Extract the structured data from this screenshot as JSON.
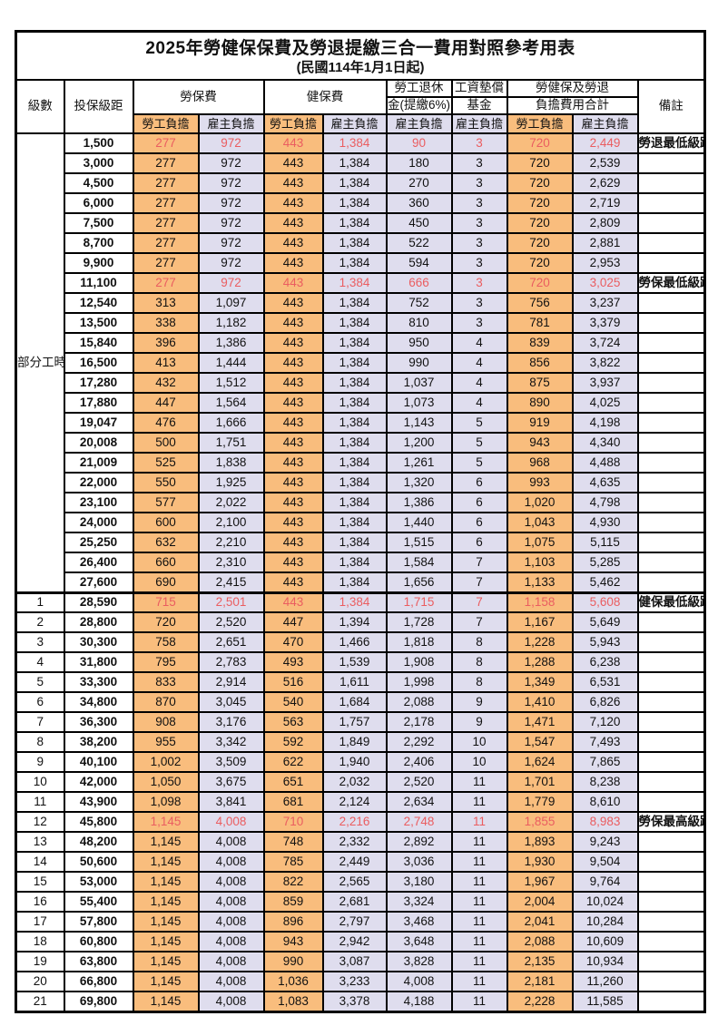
{
  "title": "2025年勞健保保費及勞退提繳三合一費用對照參考用表",
  "subtitle": "(民國114年1月1日起)",
  "colors": {
    "worker_bg": "#f9bd7d",
    "employer_bg": "#dfddee",
    "red_text": "#ea5d60",
    "border": "#000000"
  },
  "columns": {
    "level": "級數",
    "bracket": "投保級距",
    "labor": "勞保費",
    "health": "健保費",
    "pension_line1": "勞工退休",
    "pension_line2": "金(提繳6%)",
    "wage_line1": "工資墊償",
    "wage_line2": "基金",
    "total_line1": "勞健保及勞退",
    "total_line2": "負擔費用合計",
    "remark": "備註",
    "worker_share": "勞工負擔",
    "employer_share": "雇主負擔"
  },
  "group": {
    "label": "部分工時",
    "span": 23
  },
  "rows": [
    {
      "level": "",
      "bracket": "1,500",
      "v": [
        "277",
        "972",
        "443",
        "1,384",
        "90",
        "3",
        "720",
        "2,449"
      ],
      "remark": "勞退最低級距",
      "red": true
    },
    {
      "level": "",
      "bracket": "3,000",
      "v": [
        "277",
        "972",
        "443",
        "1,384",
        "180",
        "3",
        "720",
        "2,539"
      ],
      "remark": "",
      "red": false
    },
    {
      "level": "",
      "bracket": "4,500",
      "v": [
        "277",
        "972",
        "443",
        "1,384",
        "270",
        "3",
        "720",
        "2,629"
      ],
      "remark": "",
      "red": false
    },
    {
      "level": "",
      "bracket": "6,000",
      "v": [
        "277",
        "972",
        "443",
        "1,384",
        "360",
        "3",
        "720",
        "2,719"
      ],
      "remark": "",
      "red": false
    },
    {
      "level": "",
      "bracket": "7,500",
      "v": [
        "277",
        "972",
        "443",
        "1,384",
        "450",
        "3",
        "720",
        "2,809"
      ],
      "remark": "",
      "red": false
    },
    {
      "level": "",
      "bracket": "8,700",
      "v": [
        "277",
        "972",
        "443",
        "1,384",
        "522",
        "3",
        "720",
        "2,881"
      ],
      "remark": "",
      "red": false
    },
    {
      "level": "",
      "bracket": "9,900",
      "v": [
        "277",
        "972",
        "443",
        "1,384",
        "594",
        "3",
        "720",
        "2,953"
      ],
      "remark": "",
      "red": false
    },
    {
      "level": "",
      "bracket": "11,100",
      "v": [
        "277",
        "972",
        "443",
        "1,384",
        "666",
        "3",
        "720",
        "3,025"
      ],
      "remark": "勞保最低級距",
      "red": true
    },
    {
      "level": "",
      "bracket": "12,540",
      "v": [
        "313",
        "1,097",
        "443",
        "1,384",
        "752",
        "3",
        "756",
        "3,237"
      ],
      "remark": "",
      "red": false
    },
    {
      "level": "",
      "bracket": "13,500",
      "v": [
        "338",
        "1,182",
        "443",
        "1,384",
        "810",
        "3",
        "781",
        "3,379"
      ],
      "remark": "",
      "red": false
    },
    {
      "level": "",
      "bracket": "15,840",
      "v": [
        "396",
        "1,386",
        "443",
        "1,384",
        "950",
        "4",
        "839",
        "3,724"
      ],
      "remark": "",
      "red": false
    },
    {
      "level": "",
      "bracket": "16,500",
      "v": [
        "413",
        "1,444",
        "443",
        "1,384",
        "990",
        "4",
        "856",
        "3,822"
      ],
      "remark": "",
      "red": false
    },
    {
      "level": "",
      "bracket": "17,280",
      "v": [
        "432",
        "1,512",
        "443",
        "1,384",
        "1,037",
        "4",
        "875",
        "3,937"
      ],
      "remark": "",
      "red": false
    },
    {
      "level": "",
      "bracket": "17,880",
      "v": [
        "447",
        "1,564",
        "443",
        "1,384",
        "1,073",
        "4",
        "890",
        "4,025"
      ],
      "remark": "",
      "red": false
    },
    {
      "level": "",
      "bracket": "19,047",
      "v": [
        "476",
        "1,666",
        "443",
        "1,384",
        "1,143",
        "5",
        "919",
        "4,198"
      ],
      "remark": "",
      "red": false
    },
    {
      "level": "",
      "bracket": "20,008",
      "v": [
        "500",
        "1,751",
        "443",
        "1,384",
        "1,200",
        "5",
        "943",
        "4,340"
      ],
      "remark": "",
      "red": false
    },
    {
      "level": "",
      "bracket": "21,009",
      "v": [
        "525",
        "1,838",
        "443",
        "1,384",
        "1,261",
        "5",
        "968",
        "4,488"
      ],
      "remark": "",
      "red": false
    },
    {
      "level": "",
      "bracket": "22,000",
      "v": [
        "550",
        "1,925",
        "443",
        "1,384",
        "1,320",
        "6",
        "993",
        "4,635"
      ],
      "remark": "",
      "red": false
    },
    {
      "level": "",
      "bracket": "23,100",
      "v": [
        "577",
        "2,022",
        "443",
        "1,384",
        "1,386",
        "6",
        "1,020",
        "4,798"
      ],
      "remark": "",
      "red": false
    },
    {
      "level": "",
      "bracket": "24,000",
      "v": [
        "600",
        "2,100",
        "443",
        "1,384",
        "1,440",
        "6",
        "1,043",
        "4,930"
      ],
      "remark": "",
      "red": false
    },
    {
      "level": "",
      "bracket": "25,250",
      "v": [
        "632",
        "2,210",
        "443",
        "1,384",
        "1,515",
        "6",
        "1,075",
        "5,115"
      ],
      "remark": "",
      "red": false
    },
    {
      "level": "",
      "bracket": "26,400",
      "v": [
        "660",
        "2,310",
        "443",
        "1,384",
        "1,584",
        "7",
        "1,103",
        "5,285"
      ],
      "remark": "",
      "red": false
    },
    {
      "level": "",
      "bracket": "27,600",
      "v": [
        "690",
        "2,415",
        "443",
        "1,384",
        "1,656",
        "7",
        "1,133",
        "5,462"
      ],
      "remark": "",
      "red": false
    },
    {
      "level": "1",
      "bracket": "28,590",
      "v": [
        "715",
        "2,501",
        "443",
        "1,384",
        "1,715",
        "7",
        "1,158",
        "5,608"
      ],
      "remark": "健保最低級距",
      "red": true
    },
    {
      "level": "2",
      "bracket": "28,800",
      "v": [
        "720",
        "2,520",
        "447",
        "1,394",
        "1,728",
        "7",
        "1,167",
        "5,649"
      ],
      "remark": "",
      "red": false
    },
    {
      "level": "3",
      "bracket": "30,300",
      "v": [
        "758",
        "2,651",
        "470",
        "1,466",
        "1,818",
        "8",
        "1,228",
        "5,943"
      ],
      "remark": "",
      "red": false
    },
    {
      "level": "4",
      "bracket": "31,800",
      "v": [
        "795",
        "2,783",
        "493",
        "1,539",
        "1,908",
        "8",
        "1,288",
        "6,238"
      ],
      "remark": "",
      "red": false
    },
    {
      "level": "5",
      "bracket": "33,300",
      "v": [
        "833",
        "2,914",
        "516",
        "1,611",
        "1,998",
        "8",
        "1,349",
        "6,531"
      ],
      "remark": "",
      "red": false
    },
    {
      "level": "6",
      "bracket": "34,800",
      "v": [
        "870",
        "3,045",
        "540",
        "1,684",
        "2,088",
        "9",
        "1,410",
        "6,826"
      ],
      "remark": "",
      "red": false
    },
    {
      "level": "7",
      "bracket": "36,300",
      "v": [
        "908",
        "3,176",
        "563",
        "1,757",
        "2,178",
        "9",
        "1,471",
        "7,120"
      ],
      "remark": "",
      "red": false
    },
    {
      "level": "8",
      "bracket": "38,200",
      "v": [
        "955",
        "3,342",
        "592",
        "1,849",
        "2,292",
        "10",
        "1,547",
        "7,493"
      ],
      "remark": "",
      "red": false
    },
    {
      "level": "9",
      "bracket": "40,100",
      "v": [
        "1,002",
        "3,509",
        "622",
        "1,940",
        "2,406",
        "10",
        "1,624",
        "7,865"
      ],
      "remark": "",
      "red": false
    },
    {
      "level": "10",
      "bracket": "42,000",
      "v": [
        "1,050",
        "3,675",
        "651",
        "2,032",
        "2,520",
        "11",
        "1,701",
        "8,238"
      ],
      "remark": "",
      "red": false
    },
    {
      "level": "11",
      "bracket": "43,900",
      "v": [
        "1,098",
        "3,841",
        "681",
        "2,124",
        "2,634",
        "11",
        "1,779",
        "8,610"
      ],
      "remark": "",
      "red": false
    },
    {
      "level": "12",
      "bracket": "45,800",
      "v": [
        "1,145",
        "4,008",
        "710",
        "2,216",
        "2,748",
        "11",
        "1,855",
        "8,983"
      ],
      "remark": "勞保最高級距",
      "red": true
    },
    {
      "level": "13",
      "bracket": "48,200",
      "v": [
        "1,145",
        "4,008",
        "748",
        "2,332",
        "2,892",
        "11",
        "1,893",
        "9,243"
      ],
      "remark": "",
      "red": false
    },
    {
      "level": "14",
      "bracket": "50,600",
      "v": [
        "1,145",
        "4,008",
        "785",
        "2,449",
        "3,036",
        "11",
        "1,930",
        "9,504"
      ],
      "remark": "",
      "red": false
    },
    {
      "level": "15",
      "bracket": "53,000",
      "v": [
        "1,145",
        "4,008",
        "822",
        "2,565",
        "3,180",
        "11",
        "1,967",
        "9,764"
      ],
      "remark": "",
      "red": false
    },
    {
      "level": "16",
      "bracket": "55,400",
      "v": [
        "1,145",
        "4,008",
        "859",
        "2,681",
        "3,324",
        "11",
        "2,004",
        "10,024"
      ],
      "remark": "",
      "red": false
    },
    {
      "level": "17",
      "bracket": "57,800",
      "v": [
        "1,145",
        "4,008",
        "896",
        "2,797",
        "3,468",
        "11",
        "2,041",
        "10,284"
      ],
      "remark": "",
      "red": false
    },
    {
      "level": "18",
      "bracket": "60,800",
      "v": [
        "1,145",
        "4,008",
        "943",
        "2,942",
        "3,648",
        "11",
        "2,088",
        "10,609"
      ],
      "remark": "",
      "red": false
    },
    {
      "level": "19",
      "bracket": "63,800",
      "v": [
        "1,145",
        "4,008",
        "990",
        "3,087",
        "3,828",
        "11",
        "2,135",
        "10,934"
      ],
      "remark": "",
      "red": false
    },
    {
      "level": "20",
      "bracket": "66,800",
      "v": [
        "1,145",
        "4,008",
        "1,036",
        "3,233",
        "4,008",
        "11",
        "2,181",
        "11,260"
      ],
      "remark": "",
      "red": false
    },
    {
      "level": "21",
      "bracket": "69,800",
      "v": [
        "1,145",
        "4,008",
        "1,083",
        "3,378",
        "4,188",
        "11",
        "2,228",
        "11,585"
      ],
      "remark": "",
      "red": false
    }
  ]
}
